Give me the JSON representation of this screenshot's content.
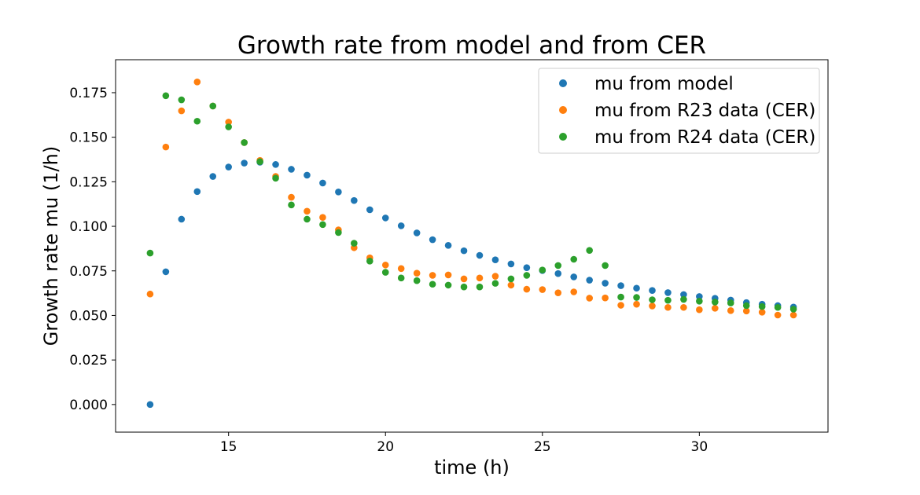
{
  "chart_data": {
    "type": "scatter",
    "title": "Growth rate from model and from CER",
    "xlabel": "time (h)",
    "ylabel": "Growth rate mu (1/h)",
    "xlim": [
      11.4,
      34.1
    ],
    "ylim": [
      -0.0155,
      0.1935
    ],
    "xticks": [
      "15",
      "20",
      "25",
      "30"
    ],
    "xtick_values": [
      15,
      20,
      25,
      30
    ],
    "yticks": [
      "0.000",
      "0.025",
      "0.050",
      "0.075",
      "0.100",
      "0.125",
      "0.150",
      "0.175"
    ],
    "ytick_values": [
      0,
      0.025,
      0.05,
      0.075,
      0.1,
      0.125,
      0.15,
      0.175
    ],
    "grid": false,
    "legend_position": "top-right",
    "x": [
      12.5,
      13.0,
      13.5,
      14.0,
      14.5,
      15.0,
      15.5,
      16.0,
      16.5,
      17.0,
      17.5,
      18.0,
      18.5,
      19.0,
      19.5,
      20.0,
      20.5,
      21.0,
      21.5,
      22.0,
      22.5,
      23.0,
      23.5,
      24.0,
      24.5,
      25.0,
      25.5,
      26.0,
      26.5,
      27.0,
      27.5,
      28.0,
      28.5,
      29.0,
      29.5,
      30.0,
      30.5,
      31.0,
      31.5,
      32.0,
      32.5,
      33.0
    ],
    "series": [
      {
        "name": "mu from model",
        "color": "#1f77b4",
        "values": [
          0.0,
          0.0745,
          0.104,
          0.1195,
          0.128,
          0.1333,
          0.1355,
          0.136,
          0.1347,
          0.132,
          0.1287,
          0.1243,
          0.1193,
          0.1145,
          0.1093,
          0.1047,
          0.1003,
          0.0963,
          0.0925,
          0.0893,
          0.0863,
          0.0837,
          0.0812,
          0.0789,
          0.0768,
          0.0752,
          0.0735,
          0.0716,
          0.0698,
          0.0681,
          0.0667,
          0.0653,
          0.064,
          0.0628,
          0.0617,
          0.0606,
          0.0596,
          0.0586,
          0.0572,
          0.0563,
          0.0555,
          0.0547
        ]
      },
      {
        "name": "mu from R23 data (CER)",
        "color": "#ff7f0e",
        "values": [
          0.062,
          0.1445,
          0.1648,
          0.181,
          0.1675,
          0.1585,
          0.147,
          0.137,
          0.128,
          0.1163,
          0.1085,
          0.105,
          0.098,
          0.088,
          0.0823,
          0.0783,
          0.0763,
          0.0737,
          0.0725,
          0.0727,
          0.0705,
          0.071,
          0.072,
          0.067,
          0.0647,
          0.0645,
          0.0627,
          0.0632,
          0.0597,
          0.0598,
          0.0557,
          0.0563,
          0.0553,
          0.0545,
          0.0545,
          0.0532,
          0.054,
          0.0527,
          0.0525,
          0.0518,
          0.0502,
          0.0502
        ]
      },
      {
        "name": "mu from R24 data (CER)",
        "color": "#2ca02c",
        "values": [
          0.085,
          0.1733,
          0.171,
          0.159,
          0.1675,
          0.1558,
          0.147,
          0.1363,
          0.127,
          0.112,
          0.104,
          0.101,
          0.0965,
          0.0905,
          0.0805,
          0.0742,
          0.071,
          0.0695,
          0.0675,
          0.067,
          0.066,
          0.066,
          0.068,
          0.0705,
          0.0725,
          0.0755,
          0.078,
          0.0815,
          0.0865,
          0.078,
          0.0603,
          0.0601,
          0.0588,
          0.0585,
          0.059,
          0.058,
          0.0575,
          0.057,
          0.0555,
          0.055,
          0.0545,
          0.0535
        ]
      }
    ]
  }
}
